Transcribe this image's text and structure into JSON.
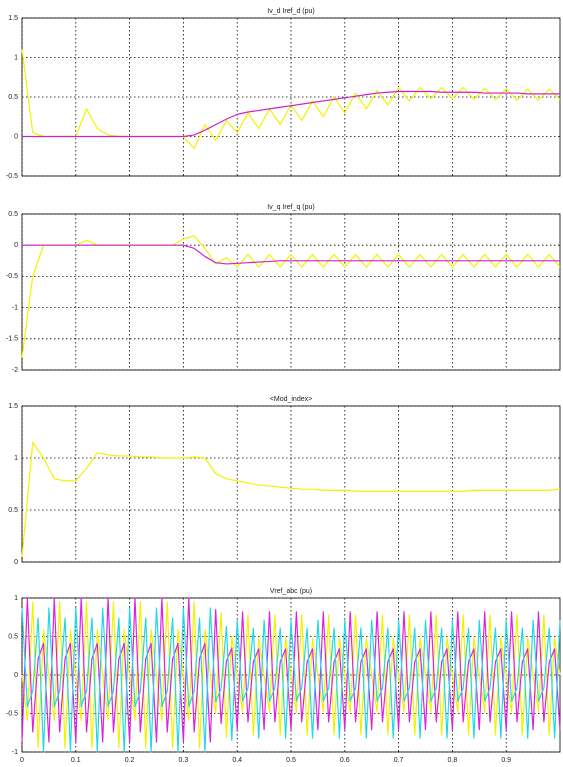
{
  "chart_data": [
    {
      "type": "line",
      "title": "Iv_d Iref_d (pu)",
      "xlim": [
        0,
        1
      ],
      "xticks": [
        0,
        0.1,
        0.2,
        0.3,
        0.4,
        0.5,
        0.6,
        0.7,
        0.8,
        0.9
      ],
      "show_xtick_labels": false,
      "ylim": [
        -0.5,
        1.5
      ],
      "yticks": [
        -0.5,
        0,
        0.5,
        1,
        1.5
      ],
      "grid": true,
      "x": [
        0,
        0.02,
        0.04,
        0.06,
        0.08,
        0.1,
        0.12,
        0.14,
        0.16,
        0.18,
        0.2,
        0.22,
        0.24,
        0.26,
        0.28,
        0.3,
        0.32,
        0.34,
        0.36,
        0.38,
        0.4,
        0.42,
        0.44,
        0.46,
        0.48,
        0.5,
        0.52,
        0.54,
        0.56,
        0.58,
        0.6,
        0.62,
        0.64,
        0.66,
        0.68,
        0.7,
        0.72,
        0.74,
        0.76,
        0.78,
        0.8,
        0.82,
        0.84,
        0.86,
        0.88,
        0.9,
        0.92,
        0.94,
        0.96,
        0.98,
        1
      ],
      "series": [
        {
          "color": "#f2f200",
          "values": [
            1.1,
            0.05,
            0,
            0,
            0,
            0,
            0.35,
            0.1,
            0.02,
            0,
            0,
            0,
            0,
            0,
            0,
            0,
            -0.15,
            0.15,
            -0.05,
            0.2,
            0.05,
            0.3,
            0.1,
            0.35,
            0.15,
            0.4,
            0.2,
            0.45,
            0.25,
            0.5,
            0.3,
            0.55,
            0.35,
            0.58,
            0.4,
            0.62,
            0.45,
            0.62,
            0.48,
            0.62,
            0.48,
            0.62,
            0.47,
            0.61,
            0.47,
            0.6,
            0.46,
            0.6,
            0.46,
            0.6,
            0.47
          ]
        },
        {
          "color": "#cc22cc",
          "values": [
            0,
            0,
            0,
            0,
            0,
            0,
            0,
            0,
            0,
            0,
            0,
            0,
            0,
            0,
            0,
            0,
            0.02,
            0.08,
            0.15,
            0.22,
            0.28,
            0.31,
            0.33,
            0.35,
            0.37,
            0.39,
            0.41,
            0.43,
            0.45,
            0.47,
            0.49,
            0.51,
            0.53,
            0.55,
            0.56,
            0.57,
            0.57,
            0.57,
            0.57,
            0.56,
            0.56,
            0.56,
            0.56,
            0.55,
            0.55,
            0.55,
            0.55,
            0.54,
            0.54,
            0.54,
            0.54
          ]
        }
      ]
    },
    {
      "type": "line",
      "title": "Iv_q Iref_q (pu)",
      "xlim": [
        0,
        1
      ],
      "xticks": [
        0,
        0.1,
        0.2,
        0.3,
        0.4,
        0.5,
        0.6,
        0.7,
        0.8,
        0.9
      ],
      "show_xtick_labels": false,
      "ylim": [
        -2,
        0.5
      ],
      "yticks": [
        -2,
        -1.5,
        -1,
        -0.5,
        0,
        0.5
      ],
      "grid": true,
      "x": [
        0,
        0.02,
        0.04,
        0.06,
        0.08,
        0.1,
        0.12,
        0.14,
        0.16,
        0.18,
        0.2,
        0.22,
        0.24,
        0.26,
        0.28,
        0.3,
        0.32,
        0.34,
        0.36,
        0.38,
        0.4,
        0.42,
        0.44,
        0.46,
        0.48,
        0.5,
        0.52,
        0.54,
        0.56,
        0.58,
        0.6,
        0.62,
        0.64,
        0.66,
        0.68,
        0.7,
        0.72,
        0.74,
        0.76,
        0.78,
        0.8,
        0.82,
        0.84,
        0.86,
        0.88,
        0.9,
        0.92,
        0.94,
        0.96,
        0.98,
        1
      ],
      "series": [
        {
          "color": "#f2f200",
          "values": [
            -1.8,
            -0.5,
            0,
            0,
            0,
            0,
            0.08,
            0,
            0,
            0,
            0,
            0,
            0,
            0,
            0,
            0.1,
            0.15,
            -0.05,
            -0.3,
            -0.2,
            -0.35,
            -0.15,
            -0.35,
            -0.15,
            -0.35,
            -0.15,
            -0.35,
            -0.15,
            -0.35,
            -0.15,
            -0.35,
            -0.15,
            -0.35,
            -0.15,
            -0.35,
            -0.15,
            -0.35,
            -0.15,
            -0.35,
            -0.15,
            -0.35,
            -0.15,
            -0.35,
            -0.15,
            -0.35,
            -0.15,
            -0.35,
            -0.15,
            -0.35,
            -0.15,
            -0.35
          ]
        },
        {
          "color": "#cc22cc",
          "values": [
            0,
            0,
            0,
            0,
            0,
            0,
            0,
            0,
            0,
            0,
            0,
            0,
            0,
            0,
            0,
            0,
            -0.05,
            -0.18,
            -0.28,
            -0.3,
            -0.29,
            -0.28,
            -0.27,
            -0.26,
            -0.25,
            -0.25,
            -0.25,
            -0.25,
            -0.25,
            -0.25,
            -0.25,
            -0.25,
            -0.25,
            -0.25,
            -0.25,
            -0.25,
            -0.25,
            -0.25,
            -0.25,
            -0.25,
            -0.25,
            -0.25,
            -0.25,
            -0.25,
            -0.25,
            -0.25,
            -0.25,
            -0.25,
            -0.25,
            -0.25,
            -0.25
          ]
        }
      ]
    },
    {
      "type": "line",
      "title": "<Mod_index>",
      "xlim": [
        0,
        1
      ],
      "xticks": [
        0,
        0.1,
        0.2,
        0.3,
        0.4,
        0.5,
        0.6,
        0.7,
        0.8,
        0.9
      ],
      "show_xtick_labels": false,
      "ylim": [
        0,
        1.5
      ],
      "yticks": [
        0,
        0.5,
        1,
        1.5
      ],
      "grid": true,
      "x": [
        0,
        0.02,
        0.04,
        0.06,
        0.08,
        0.1,
        0.12,
        0.14,
        0.16,
        0.18,
        0.2,
        0.22,
        0.24,
        0.26,
        0.28,
        0.3,
        0.32,
        0.34,
        0.36,
        0.38,
        0.4,
        0.42,
        0.44,
        0.46,
        0.48,
        0.5,
        0.52,
        0.54,
        0.56,
        0.58,
        0.6,
        0.62,
        0.64,
        0.66,
        0.68,
        0.7,
        0.72,
        0.74,
        0.76,
        0.78,
        0.8,
        0.82,
        0.84,
        0.86,
        0.88,
        0.9,
        0.92,
        0.94,
        0.96,
        0.98,
        1
      ],
      "series": [
        {
          "color": "#f2f200",
          "values": [
            0.05,
            1.15,
            1.0,
            0.8,
            0.78,
            0.78,
            0.9,
            1.05,
            1.03,
            1.02,
            1.02,
            1.01,
            1.01,
            1.0,
            1.0,
            1.0,
            1.01,
            1.0,
            0.85,
            0.8,
            0.78,
            0.76,
            0.74,
            0.73,
            0.72,
            0.71,
            0.7,
            0.7,
            0.69,
            0.69,
            0.69,
            0.68,
            0.68,
            0.68,
            0.68,
            0.68,
            0.68,
            0.68,
            0.68,
            0.68,
            0.68,
            0.68,
            0.69,
            0.69,
            0.69,
            0.69,
            0.69,
            0.69,
            0.69,
            0.69,
            0.7
          ]
        }
      ]
    },
    {
      "type": "line",
      "title": "Vref_abc (pu)",
      "xlim": [
        0,
        1
      ],
      "xticks": [
        0,
        0.1,
        0.2,
        0.3,
        0.4,
        0.5,
        0.6,
        0.7,
        0.8,
        0.9
      ],
      "show_xtick_labels": true,
      "ylim": [
        -1,
        1
      ],
      "yticks": [
        -1,
        -0.5,
        0,
        0.5,
        1
      ],
      "grid": true,
      "x": [
        0,
        0.01,
        0.02,
        0.03,
        0.04,
        0.05,
        0.06,
        0.07,
        0.08,
        0.09,
        0.1,
        0.11,
        0.12,
        0.13,
        0.14,
        0.15,
        0.16,
        0.17,
        0.18,
        0.19,
        0.2,
        0.21,
        0.22,
        0.23,
        0.24,
        0.25,
        0.26,
        0.27,
        0.28,
        0.29,
        0.3,
        0.31,
        0.32,
        0.33,
        0.34,
        0.35,
        0.36,
        0.37,
        0.38,
        0.39,
        0.4,
        0.41,
        0.42,
        0.43,
        0.44,
        0.45,
        0.46,
        0.47,
        0.48,
        0.49,
        0.5,
        0.51,
        0.52,
        0.53,
        0.54,
        0.55,
        0.56,
        0.57,
        0.58,
        0.59,
        0.6,
        0.61,
        0.62,
        0.63,
        0.64,
        0.65,
        0.66,
        0.67,
        0.68,
        0.69,
        0.7,
        0.71,
        0.72,
        0.73,
        0.74,
        0.75,
        0.76,
        0.77,
        0.78,
        0.79,
        0.8,
        0.81,
        0.82,
        0.83,
        0.84,
        0.85,
        0.86,
        0.87,
        0.88,
        0.89,
        0.9,
        0.91,
        0.92,
        0.93,
        0.94,
        0.95,
        0.96,
        0.97,
        0.98,
        0.99,
        1
      ],
      "series": [
        {
          "color": "#f2f200",
          "values": [
            0,
            -0.59,
            0.95,
            -0.95,
            0.59,
            0,
            -0.59,
            0.95,
            -0.95,
            0.59,
            0,
            -0.59,
            0.95,
            -0.95,
            0.59,
            0,
            -0.59,
            0.95,
            -0.95,
            0.59,
            0,
            -0.59,
            0.95,
            -0.95,
            0.59,
            0,
            -0.59,
            0.95,
            -0.95,
            0.59,
            0,
            -0.59,
            0.95,
            -0.95,
            0.59,
            0,
            -0.5,
            0.81,
            -0.81,
            0.5,
            0,
            -0.48,
            0.78,
            -0.78,
            0.48,
            0,
            -0.48,
            0.78,
            -0.78,
            0.48,
            0,
            -0.48,
            0.78,
            -0.78,
            0.48,
            0,
            -0.48,
            0.78,
            -0.78,
            0.48,
            0,
            -0.48,
            0.78,
            -0.78,
            0.48,
            0,
            -0.48,
            0.78,
            -0.78,
            0.48,
            0,
            -0.48,
            0.78,
            -0.78,
            0.48,
            0,
            -0.48,
            0.78,
            -0.78,
            0.48,
            0,
            -0.48,
            0.78,
            -0.78,
            0.48,
            0,
            -0.48,
            0.78,
            -0.78,
            0.48,
            0,
            -0.48,
            0.78,
            -0.78,
            0.48,
            0,
            -0.48,
            0.78,
            -0.78,
            0.48,
            0
          ]
        },
        {
          "color": "#dd22dd",
          "values": [
            -0.87,
            1,
            -0.74,
            0.21,
            0.41,
            -0.87,
            1,
            -0.74,
            0.21,
            0.41,
            -0.87,
            1,
            -0.74,
            0.21,
            0.41,
            -0.87,
            1,
            -0.74,
            0.21,
            0.41,
            -0.87,
            1,
            -0.74,
            0.21,
            0.41,
            -0.87,
            1,
            -0.74,
            0.21,
            0.41,
            -0.87,
            1,
            -0.74,
            0.21,
            0.41,
            -0.87,
            0.85,
            -0.63,
            0.18,
            0.35,
            -0.71,
            0.82,
            -0.61,
            0.17,
            0.34,
            -0.71,
            0.82,
            -0.61,
            0.17,
            0.34,
            -0.71,
            0.82,
            -0.61,
            0.17,
            0.34,
            -0.71,
            0.82,
            -0.61,
            0.17,
            0.34,
            -0.71,
            0.82,
            -0.61,
            0.17,
            0.34,
            -0.71,
            0.82,
            -0.61,
            0.17,
            0.34,
            -0.71,
            0.82,
            -0.61,
            0.17,
            0.34,
            -0.71,
            0.82,
            -0.61,
            0.17,
            0.34,
            -0.71,
            0.82,
            -0.61,
            0.17,
            0.34,
            -0.71,
            0.82,
            -0.61,
            0.17,
            0.34,
            -0.71,
            0.82,
            -0.61,
            0.17,
            0.34,
            -0.71,
            0.82,
            -0.61,
            0.17,
            0.34,
            -0.71
          ]
        },
        {
          "color": "#22d8e8",
          "values": [
            0.87,
            -0.41,
            -0.21,
            0.74,
            -1,
            0.87,
            -0.41,
            -0.21,
            0.74,
            -1,
            0.87,
            -0.41,
            -0.21,
            0.74,
            -1,
            0.87,
            -0.41,
            -0.21,
            0.74,
            -1,
            0.87,
            -0.41,
            -0.21,
            0.74,
            -1,
            0.87,
            -0.41,
            -0.21,
            0.74,
            -1,
            0.87,
            -0.41,
            -0.21,
            0.74,
            -1,
            0.87,
            -0.35,
            -0.18,
            0.63,
            -0.85,
            0.71,
            -0.34,
            -0.17,
            0.61,
            -0.82,
            0.71,
            -0.34,
            -0.17,
            0.61,
            -0.82,
            0.71,
            -0.34,
            -0.17,
            0.61,
            -0.82,
            0.71,
            -0.34,
            -0.17,
            0.61,
            -0.82,
            0.71,
            -0.34,
            -0.17,
            0.61,
            -0.82,
            0.71,
            -0.34,
            -0.17,
            0.61,
            -0.82,
            0.71,
            -0.34,
            -0.17,
            0.61,
            -0.82,
            0.71,
            -0.34,
            -0.17,
            0.61,
            -0.82,
            0.71,
            -0.34,
            -0.17,
            0.61,
            -0.82,
            0.71,
            -0.34,
            -0.17,
            0.61,
            -0.82,
            0.71,
            -0.34,
            -0.17,
            0.61,
            -0.82,
            0.71,
            -0.34,
            -0.17,
            0.61,
            -0.82,
            0.71
          ]
        }
      ]
    }
  ]
}
